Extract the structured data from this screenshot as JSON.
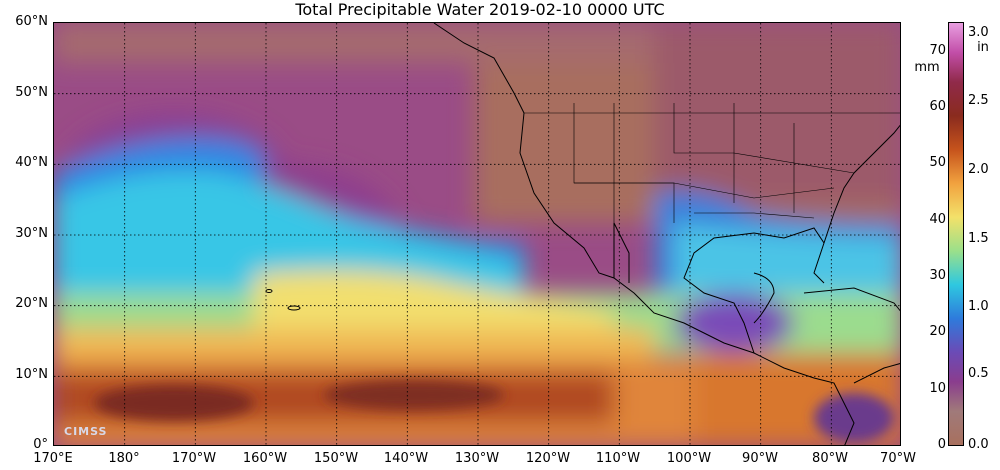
{
  "title": "Total Precipitable Water  2019-02-10 0000 UTC",
  "lat_labels": [
    "60°N",
    "50°N",
    "40°N",
    "30°N",
    "20°N",
    "10°N",
    "0°"
  ],
  "lon_labels": [
    "170°E",
    "180°",
    "170°W",
    "160°W",
    "150°W",
    "140°W",
    "130°W",
    "120°W",
    "110°W",
    "100°W",
    "90°W",
    "80°W",
    "70°W"
  ],
  "colorbar": {
    "mm_ticks": [
      "0",
      "10",
      "20",
      "30",
      "40",
      "50",
      "60",
      "70"
    ],
    "mm_unit": "mm",
    "in_ticks": [
      "0.0",
      "0.5",
      "1.0",
      "1.5",
      "2.0",
      "2.5",
      "3.0"
    ],
    "in_unit": "in",
    "colors": {
      "dry": "#a8705e",
      "purple": "#8a3d8e",
      "blue": "#2e7bdc",
      "cyan": "#2ec8e0",
      "green": "#9be08a",
      "yellow": "#f3e16a",
      "orange": "#f1a23f",
      "red_brown": "#8a2b1e",
      "magenta": "#c24ea8",
      "pink": "#e89ee0"
    }
  },
  "watermark": "CIMSS"
}
